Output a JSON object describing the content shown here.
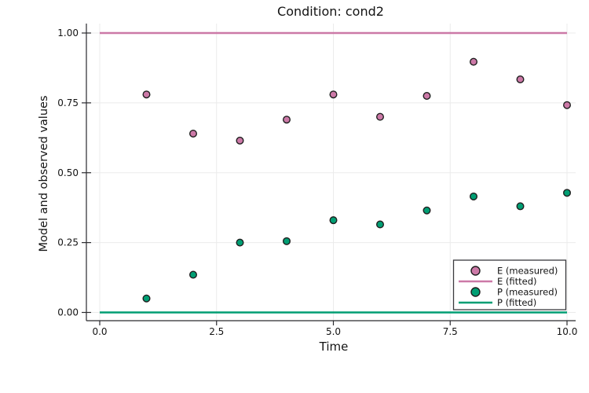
{
  "page": {
    "background_color": "#FFFFFF"
  },
  "chart_data": {
    "type": "scatter",
    "title": "Condition: cond2",
    "xlabel": "Time",
    "ylabel": "Model and observed values",
    "xlim": [
      0,
      10
    ],
    "ylim": [
      0,
      1
    ],
    "xticks": [
      0.0,
      2.5,
      5.0,
      7.5,
      10.0
    ],
    "xtick_labels": [
      "0.0",
      "2.5",
      "5.0",
      "7.5",
      "10.0"
    ],
    "yticks": [
      0.0,
      0.25,
      0.5,
      0.75,
      1.0
    ],
    "ytick_labels": [
      "0.00",
      "0.25",
      "0.50",
      "0.75",
      "1.00"
    ],
    "grid": true,
    "legend_position": "bottom-right",
    "colors": {
      "e_series": "#CC79A7",
      "p_series": "#009E73",
      "marker_outline": "#1F1F1F",
      "axis": "#2A2A2E",
      "gridline": "#EBEBEB",
      "legend_border": "#3A3A3E",
      "legend_background": "#FFFFFF"
    },
    "series": [
      {
        "name": "E (measured)",
        "type": "scatter",
        "color": "#CC79A7",
        "x": [
          1,
          2,
          3,
          4,
          5,
          6,
          7,
          8,
          9,
          10
        ],
        "y": [
          0.78,
          0.64,
          0.615,
          0.69,
          0.78,
          0.7,
          0.775,
          0.897,
          0.834,
          0.742
        ]
      },
      {
        "name": "E (fitted)",
        "type": "line",
        "color": "#CC79A7",
        "x": [
          0,
          10
        ],
        "y": [
          1.0,
          1.0
        ]
      },
      {
        "name": "P (measured)",
        "type": "scatter",
        "color": "#009E73",
        "x": [
          1,
          2,
          3,
          4,
          5,
          6,
          7,
          8,
          9,
          10
        ],
        "y": [
          0.05,
          0.135,
          0.25,
          0.255,
          0.33,
          0.315,
          0.365,
          0.415,
          0.38,
          0.428
        ]
      },
      {
        "name": "P (fitted)",
        "type": "line",
        "color": "#009E73",
        "x": [
          0,
          10
        ],
        "y": [
          0.0,
          0.0
        ]
      }
    ]
  }
}
